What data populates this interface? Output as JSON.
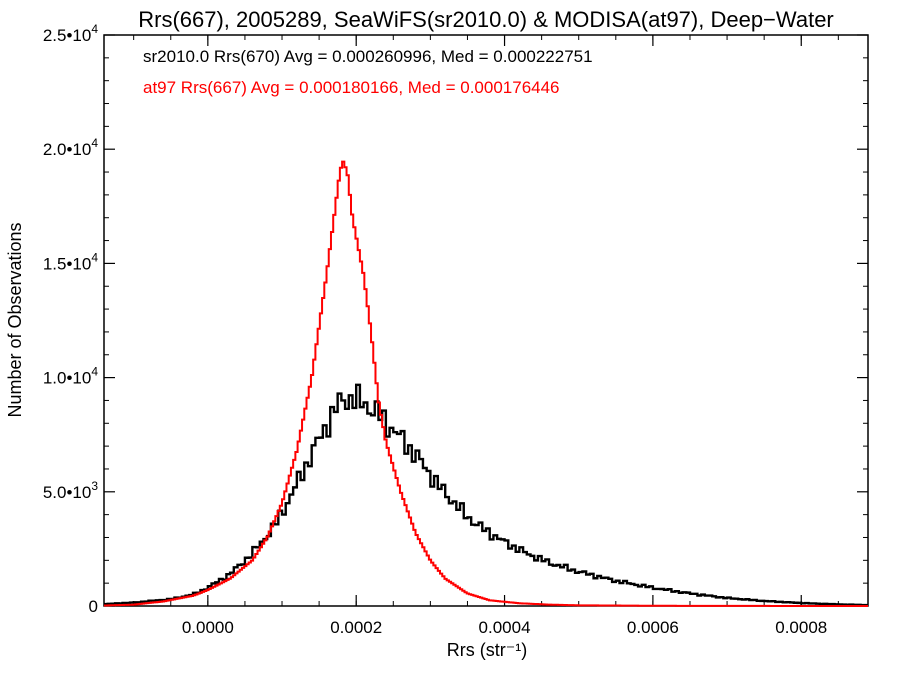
{
  "chart_data": {
    "type": "line",
    "title": "Rrs(667), 2005289, SeaWiFS(sr2010.0) & MODISA(at97), Deep−Water",
    "xlabel": "Rrs (str⁻¹)",
    "ylabel": "Number of Observations",
    "xlim": [
      -0.00014,
      0.00089
    ],
    "ylim": [
      0,
      25000
    ],
    "grid": false,
    "legend": "none",
    "x_ticks": [
      0.0,
      0.0002,
      0.0004,
      0.0006,
      0.0008
    ],
    "x_tick_labels": [
      "0.0000",
      "0.0002",
      "0.0004",
      "0.0006",
      "0.0008"
    ],
    "y_ticks": [
      0,
      5000,
      10000,
      15000,
      20000,
      25000
    ],
    "y_tick_labels": [
      {
        "mantissa": "0",
        "exp": ""
      },
      {
        "mantissa": "5.0•10",
        "exp": "3"
      },
      {
        "mantissa": "1.0•10",
        "exp": "4"
      },
      {
        "mantissa": "1.5•10",
        "exp": "4"
      },
      {
        "mantissa": "2.0•10",
        "exp": "4"
      },
      {
        "mantissa": "2.5•10",
        "exp": "4"
      }
    ],
    "annotations": [
      {
        "text": "sr2010.0 Rrs(670) Avg = 0.000260996, Med = 0.000222751",
        "color": "#000000"
      },
      {
        "text": "at97 Rrs(667) Avg = 0.000180166, Med = 0.000176446",
        "color": "#ff0000"
      }
    ],
    "series": [
      {
        "color": "#000000",
        "bin_width": 5e-06,
        "points": [
          [
            -0.00014,
            80
          ],
          [
            -0.0001,
            150
          ],
          [
            -5e-05,
            300
          ],
          [
            -2e-05,
            500
          ],
          [
            0.0,
            800
          ],
          [
            3e-05,
            1400
          ],
          [
            6e-05,
            2300
          ],
          [
            9e-05,
            3500
          ],
          [
            0.00011,
            4700
          ],
          [
            0.00013,
            6000
          ],
          [
            0.00015,
            7300
          ],
          [
            0.00017,
            8500
          ],
          [
            0.00018,
            9000
          ],
          [
            0.00019,
            9100
          ],
          [
            0.00021,
            8900
          ],
          [
            0.00023,
            8400
          ],
          [
            0.00025,
            7700
          ],
          [
            0.00027,
            7000
          ],
          [
            0.00029,
            6200
          ],
          [
            0.00031,
            5300
          ],
          [
            0.00033,
            4600
          ],
          [
            0.00035,
            3900
          ],
          [
            0.00037,
            3400
          ],
          [
            0.0004,
            2800
          ],
          [
            0.00043,
            2300
          ],
          [
            0.00046,
            1900
          ],
          [
            0.0005,
            1500
          ],
          [
            0.00055,
            1100
          ],
          [
            0.0006,
            800
          ],
          [
            0.00065,
            550
          ],
          [
            0.0007,
            350
          ],
          [
            0.00075,
            220
          ],
          [
            0.0008,
            130
          ],
          [
            0.00085,
            70
          ],
          [
            0.00089,
            40
          ]
        ]
      },
      {
        "color": "#ff0000",
        "bin_width": 3e-06,
        "points": [
          [
            -0.00014,
            20
          ],
          [
            -0.0001,
            60
          ],
          [
            -6e-05,
            200
          ],
          [
            -2e-05,
            450
          ],
          [
            0.0,
            700
          ],
          [
            3e-05,
            1200
          ],
          [
            6e-05,
            2000
          ],
          [
            8e-05,
            3000
          ],
          [
            0.0001,
            4500
          ],
          [
            0.00012,
            6800
          ],
          [
            0.00014,
            10000
          ],
          [
            0.00016,
            14500
          ],
          [
            0.00017,
            17000
          ],
          [
            0.000178,
            19000
          ],
          [
            0.000182,
            19500
          ],
          [
            0.000188,
            19000
          ],
          [
            0.000195,
            17000
          ],
          [
            0.00021,
            14500
          ],
          [
            0.00022,
            12000
          ],
          [
            0.00023,
            9000
          ],
          [
            0.00024,
            7200
          ],
          [
            0.00026,
            5000
          ],
          [
            0.00028,
            3200
          ],
          [
            0.0003,
            2000
          ],
          [
            0.00032,
            1200
          ],
          [
            0.00035,
            550
          ],
          [
            0.00038,
            250
          ],
          [
            0.00042,
            120
          ],
          [
            0.00046,
            60
          ],
          [
            0.0005,
            30
          ],
          [
            0.0006,
            10
          ],
          [
            0.0007,
            4
          ],
          [
            0.0008,
            2
          ],
          [
            0.00089,
            1
          ]
        ]
      }
    ]
  }
}
